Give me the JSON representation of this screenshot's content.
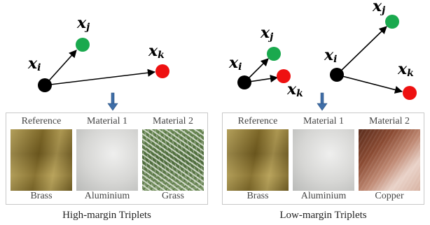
{
  "nodes": {
    "xi": "x",
    "xi_sub": "i",
    "xj": "x",
    "xj_sub": "j",
    "xk": "x",
    "xk_sub": "k"
  },
  "colors": {
    "reference": "#000000",
    "positive": "#1aa94e",
    "negative": "#ee1111",
    "down_arrow": "#3f6ea8"
  },
  "left_panel": {
    "columns": [
      {
        "header": "Reference",
        "material": "Brass"
      },
      {
        "header": "Material 1",
        "material": "Aluminium"
      },
      {
        "header": "Material 2",
        "material": "Grass"
      }
    ],
    "caption": "High-margin Triplets"
  },
  "right_panel": {
    "columns": [
      {
        "header": "Reference",
        "material": "Brass"
      },
      {
        "header": "Material 1",
        "material": "Aluminium"
      },
      {
        "header": "Material 2",
        "material": "Copper"
      }
    ],
    "caption": "Low-margin Triplets"
  }
}
